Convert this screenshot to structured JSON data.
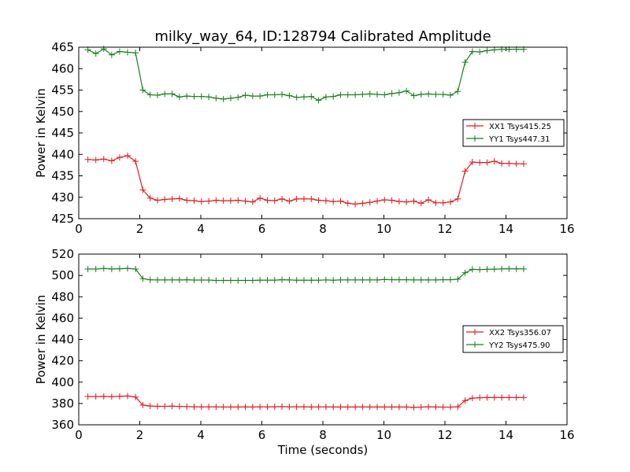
{
  "figure": {
    "title": "milky_way_64, ID:128794 Calibrated Amplitude"
  },
  "chart_data": [
    {
      "type": "line",
      "title": "milky_way_64, ID:128794 Calibrated Amplitude",
      "xlabel": "",
      "ylabel": "Power in Kelvin",
      "xlim": [
        0,
        16
      ],
      "ylim": [
        425,
        465
      ],
      "xticks": [
        0,
        2,
        4,
        6,
        8,
        10,
        12,
        14,
        16
      ],
      "yticks": [
        425,
        430,
        435,
        440,
        445,
        450,
        455,
        460,
        465
      ],
      "grid": false,
      "legend_position": "center-right",
      "x": [
        0.3,
        0.56,
        0.82,
        1.08,
        1.34,
        1.6,
        1.86,
        2.1,
        2.34,
        2.58,
        2.82,
        3.06,
        3.3,
        3.54,
        3.78,
        4.02,
        4.26,
        4.5,
        4.74,
        4.98,
        5.22,
        5.46,
        5.7,
        5.94,
        6.18,
        6.42,
        6.66,
        6.9,
        7.14,
        7.38,
        7.62,
        7.86,
        8.1,
        8.34,
        8.58,
        8.82,
        9.06,
        9.3,
        9.54,
        9.78,
        10.02,
        10.26,
        10.5,
        10.74,
        10.98,
        11.22,
        11.46,
        11.7,
        11.94,
        12.18,
        12.42,
        12.66,
        12.9,
        13.14,
        13.38,
        13.62,
        13.86,
        14.1,
        14.34,
        14.58
      ],
      "series": [
        {
          "name": "XX1 Tsys415.25",
          "color": "#e41a1c",
          "values": [
            438.8,
            438.7,
            438.9,
            438.5,
            439.3,
            439.7,
            438.4,
            431.7,
            429.8,
            429.3,
            429.5,
            429.6,
            429.7,
            429.3,
            429.2,
            429.0,
            429.1,
            429.3,
            429.2,
            429.2,
            429.3,
            429.1,
            428.9,
            429.8,
            429.3,
            429.2,
            429.6,
            429.1,
            429.6,
            429.6,
            429.6,
            429.3,
            429.2,
            429.0,
            429.1,
            428.6,
            428.4,
            428.6,
            428.8,
            429.1,
            429.4,
            429.3,
            429.0,
            428.9,
            429.1,
            428.6,
            429.4,
            428.7,
            428.7,
            428.9,
            429.6,
            436.1,
            438.2,
            438.1,
            438.1,
            438.4,
            437.9,
            437.9,
            437.8,
            437.8
          ]
        },
        {
          "name": "YY1 Tsys447.31",
          "color": "#1a7f1a",
          "values": [
            464.4,
            463.5,
            464.6,
            463.2,
            464.0,
            463.8,
            463.7,
            455.0,
            453.9,
            453.8,
            454.1,
            454.1,
            453.4,
            453.6,
            453.5,
            453.5,
            453.4,
            453.1,
            452.9,
            453.1,
            453.3,
            453.8,
            453.6,
            453.6,
            453.9,
            453.9,
            454.0,
            453.7,
            453.3,
            453.4,
            453.5,
            452.6,
            453.4,
            453.5,
            453.9,
            453.9,
            453.9,
            454.0,
            454.1,
            454.0,
            453.9,
            454.2,
            454.4,
            454.8,
            453.7,
            454.0,
            454.1,
            454.0,
            454.0,
            453.8,
            454.7,
            461.5,
            464.0,
            463.9,
            464.2,
            464.4,
            464.5,
            464.5,
            464.5,
            464.5
          ]
        }
      ]
    },
    {
      "type": "line",
      "title": "",
      "xlabel": "Time (seconds)",
      "ylabel": "Power in Kelvin",
      "xlim": [
        0,
        16
      ],
      "ylim": [
        360,
        520
      ],
      "xticks": [
        0,
        2,
        4,
        6,
        8,
        10,
        12,
        14,
        16
      ],
      "yticks": [
        360,
        380,
        400,
        420,
        440,
        460,
        480,
        500,
        520
      ],
      "grid": false,
      "legend_position": "center-right",
      "x": [
        0.3,
        0.56,
        0.82,
        1.08,
        1.34,
        1.6,
        1.86,
        2.1,
        2.34,
        2.58,
        2.82,
        3.06,
        3.3,
        3.54,
        3.78,
        4.02,
        4.26,
        4.5,
        4.74,
        4.98,
        5.22,
        5.46,
        5.7,
        5.94,
        6.18,
        6.42,
        6.66,
        6.9,
        7.14,
        7.38,
        7.62,
        7.86,
        8.1,
        8.34,
        8.58,
        8.82,
        9.06,
        9.3,
        9.54,
        9.78,
        10.02,
        10.26,
        10.5,
        10.74,
        10.98,
        11.22,
        11.46,
        11.7,
        11.94,
        12.18,
        12.42,
        12.66,
        12.9,
        13.14,
        13.38,
        13.62,
        13.86,
        14.1,
        14.34,
        14.58
      ],
      "series": [
        {
          "name": "XX2 Tsys356.07",
          "color": "#e41a1c",
          "values": [
            386.5,
            386.5,
            386.6,
            386.4,
            386.6,
            387.0,
            386.0,
            378.5,
            377.6,
            377.3,
            377.3,
            377.5,
            377.2,
            377.0,
            376.9,
            376.8,
            376.8,
            376.8,
            376.7,
            376.7,
            376.7,
            376.8,
            376.7,
            376.8,
            376.8,
            376.9,
            377.0,
            376.9,
            376.9,
            376.9,
            376.7,
            376.8,
            376.8,
            376.7,
            376.7,
            376.7,
            376.7,
            376.8,
            376.7,
            376.7,
            376.7,
            376.7,
            376.7,
            376.7,
            376.3,
            376.6,
            376.9,
            376.7,
            376.6,
            376.6,
            376.8,
            382.7,
            385.0,
            385.4,
            385.5,
            385.6,
            385.6,
            385.6,
            385.6,
            385.5
          ]
        },
        {
          "name": "YY2 Tsys475.90",
          "color": "#1a7f1a",
          "values": [
            506.0,
            506.0,
            506.5,
            506.1,
            506.3,
            506.5,
            506.0,
            497.0,
            495.9,
            495.8,
            495.8,
            495.8,
            495.8,
            495.9,
            495.7,
            495.7,
            495.7,
            495.3,
            495.3,
            495.3,
            495.3,
            495.3,
            495.3,
            495.6,
            495.6,
            495.6,
            496.0,
            495.8,
            495.5,
            495.5,
            495.5,
            495.5,
            495.8,
            495.5,
            495.8,
            495.8,
            495.8,
            495.8,
            495.8,
            495.8,
            496.2,
            496.0,
            496.0,
            496.0,
            495.8,
            495.8,
            495.8,
            495.8,
            496.0,
            496.0,
            496.5,
            502.5,
            505.7,
            505.5,
            505.8,
            505.9,
            506.1,
            506.3,
            506.2,
            506.1
          ]
        }
      ]
    }
  ]
}
